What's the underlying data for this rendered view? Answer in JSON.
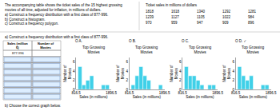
{
  "text": "The accompanying table shows the ticket sales of the 15 highest grossing movies of all time, adjusted for inflation, in millions of dollars.",
  "parts": [
    "a) Construct a frequency distribution with a first class of 877-996.",
    "b) Construct a histogram.",
    "c) Construct a frequency polygon."
  ],
  "table": {
    "title": "Ticket sales in millions of dollars",
    "rows": [
      [
        1818,
        1618,
        1340,
        1292,
        1281
      ],
      [
        1239,
        1127,
        1105,
        1022,
        984
      ],
      [
        970,
        959,
        947,
        909,
        896
      ]
    ]
  },
  "prompts": [
    "a) Construct a frequency distribution with a first class of 877-996.",
    "b) Choose the correct graph below."
  ],
  "frequency_table": {
    "headers": [
      "Sales (million $)",
      "Number of Movies"
    ],
    "first_class": "877-996"
  },
  "chart_data": [
    {
      "type": "histogram",
      "title": "Top Grossing\nMovies",
      "annotations": [
        "O A."
      ],
      "xlabel": "Sales (in millions)",
      "ylabel": "Number of\nMovies",
      "bins": [
        877,
        997,
        1117,
        1237,
        1357,
        1477,
        1597,
        1717,
        1837
      ],
      "values": [
        5,
        1,
        2,
        3,
        0,
        0,
        1,
        1
      ],
      "color": "#40d0e8",
      "xlim": [
        816.5,
        1896.5
      ],
      "xticks": [
        816.5,
        1896.5
      ],
      "ylim": [
        0,
        7
      ],
      "yticks": [
        0,
        2,
        4,
        6
      ],
      "grid": false
    },
    {
      "type": "histogram",
      "title": "Top Grossing\nMovies",
      "annotations": [
        "O B."
      ],
      "xlabel": "Sales (in millions)",
      "ylabel": "Number of\nMovies",
      "bins": [
        877,
        997,
        1117,
        1237,
        1357,
        1477,
        1597,
        1717,
        1837
      ],
      "values": [
        1,
        3,
        5,
        3,
        2,
        0,
        0,
        1
      ],
      "color": "#40d0e8",
      "xlim": [
        816.5,
        1896.5
      ],
      "xticks": [
        816.5,
        1896.5
      ],
      "ylim": [
        0,
        7
      ],
      "yticks": [
        0,
        2,
        4,
        6
      ],
      "grid": false
    },
    {
      "type": "histogram",
      "title": "Top Grossing\nMovies",
      "annotations": [
        "O C."
      ],
      "xlabel": "Sales (in millions)",
      "ylabel": "Number of\nMovies",
      "bins": [
        877,
        997,
        1117,
        1237,
        1357,
        1477,
        1597,
        1717,
        1837
      ],
      "values": [
        5,
        3,
        3,
        2,
        1,
        0,
        1,
        1
      ],
      "color": "#40d0e8",
      "xlim": [
        816.5,
        1896.5
      ],
      "xticks": [
        816.5,
        1896.5
      ],
      "ylim": [
        0,
        7
      ],
      "yticks": [
        0,
        2,
        4,
        6
      ],
      "grid": false
    },
    {
      "type": "histogram",
      "title": "Top Grossing\nMovies",
      "annotations": [
        "O D.",
        "✓"
      ],
      "xlabel": "Sales (in millions)",
      "ylabel": "Number of\nMovies",
      "bins": [
        877,
        997,
        1117,
        1237,
        1357,
        1477,
        1597,
        1717,
        1837
      ],
      "values": [
        5,
        3,
        2,
        3,
        0,
        0,
        1,
        1
      ],
      "color": "#40d0e8",
      "xlim": [
        816.5,
        1896.5
      ],
      "xticks": [
        816.5,
        1896.5
      ],
      "ylim": [
        0,
        7
      ],
      "yticks": [
        0,
        2,
        4,
        6
      ],
      "grid": false
    }
  ]
}
